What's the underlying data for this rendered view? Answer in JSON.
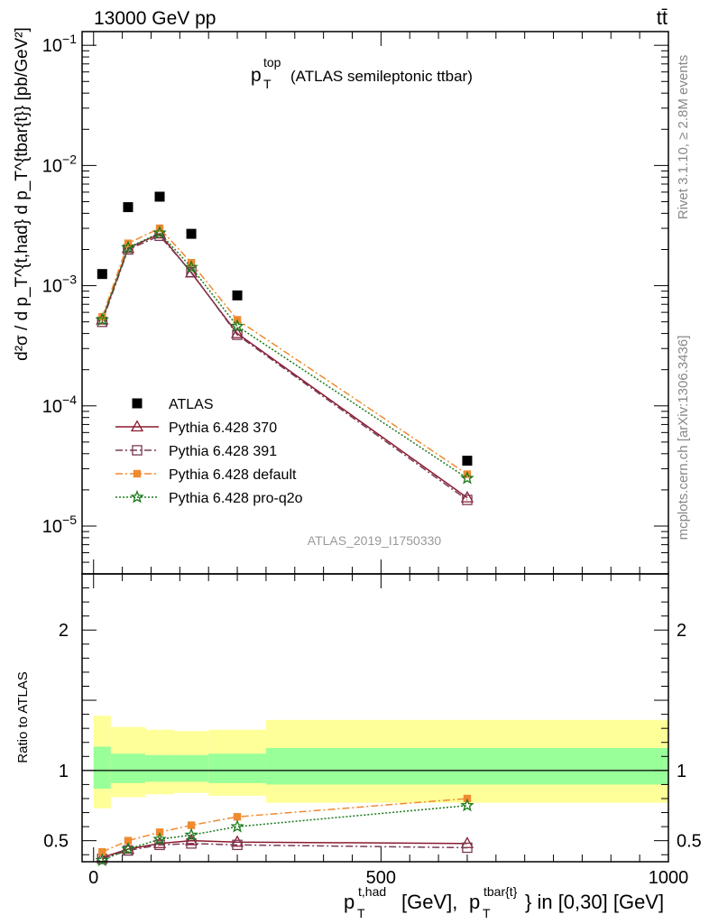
{
  "header": {
    "left": "13000 GeV pp",
    "right": "tt̄",
    "side_rivet": "Rivet 3.1.10, ≥ 2.8M events",
    "side_mcplots": "mcplots.cern.ch [arXiv:1306.3436]"
  },
  "chart_data": [
    {
      "type": "line",
      "panel": "main",
      "title": "p_T^top (ATLAS semileptonic ttbar)",
      "title_parts": {
        "p": "p",
        "sub": "T",
        "sup": "top",
        "rest": "(ATLAS semileptonic ttbar)"
      },
      "ylabel": "d²σ / d p_T^{t,had} d p_T^{tbar{t}} [pb/GeV²]",
      "ylog": true,
      "ylim": [
        4e-06,
        0.13
      ],
      "xlim": [
        -20,
        1000
      ],
      "y_tick_labels": [
        {
          "value": 0.1,
          "mant": "10",
          "exp": "−1"
        },
        {
          "value": 0.01,
          "mant": "10",
          "exp": "−2"
        },
        {
          "value": 0.001,
          "mant": "10",
          "exp": "−3"
        },
        {
          "value": 0.0001,
          "mant": "10",
          "exp": "−4"
        },
        {
          "value": 1e-05,
          "mant": "10",
          "exp": "−5"
        }
      ],
      "watermark": "ATLAS_2019_I1750330",
      "legend_position": "lower-left",
      "x": [
        15,
        60,
        115,
        170,
        250,
        650
      ],
      "series": [
        {
          "name": "ATLAS",
          "marker": "filled-square",
          "color": "#000000",
          "line": "none",
          "values": [
            0.00125,
            0.0045,
            0.0055,
            0.0027,
            0.00083,
            3.5e-05
          ]
        },
        {
          "name": "Pythia 6.428 370",
          "marker": "open-triangle",
          "color": "#8b1a2f",
          "line": "solid",
          "values": [
            0.00052,
            0.00205,
            0.0027,
            0.00128,
            0.0004,
            1.72e-05
          ]
        },
        {
          "name": "Pythia 6.428 391",
          "marker": "open-square",
          "color": "#7a3a55",
          "line": "dashdot",
          "values": [
            0.0005,
            0.002,
            0.0026,
            0.0013,
            0.00039,
            1.65e-05
          ]
        },
        {
          "name": "Pythia 6.428 default",
          "marker": "filled-square-small",
          "color": "#f08a30",
          "line": "dashdot",
          "values": [
            0.00055,
            0.00225,
            0.003,
            0.00155,
            0.00052,
            2.7e-05
          ]
        },
        {
          "name": "Pythia 6.428 pro-q2o",
          "marker": "star",
          "color": "#1a7a1a",
          "line": "dotted",
          "values": [
            0.00052,
            0.00207,
            0.00275,
            0.00142,
            0.00046,
            2.5e-05
          ]
        }
      ]
    },
    {
      "type": "line",
      "panel": "ratio",
      "ylabel": "Ratio to ATLAS",
      "ylim": [
        0.35,
        2.4
      ],
      "xlim": [
        -20,
        1000
      ],
      "reference_line": 1,
      "y_tick_labels": [
        {
          "value": 0.5,
          "text": "0.5"
        },
        {
          "value": 1,
          "text": "1"
        },
        {
          "value": 2,
          "text": "2"
        }
      ],
      "x_tick_labels": [
        {
          "value": 0,
          "text": "0"
        },
        {
          "value": 500,
          "text": "500"
        },
        {
          "value": 1000,
          "text": "1000"
        }
      ],
      "xlabel": "p_T^{t,had} [GeV], p_T^{tbar{t}} in [0,30] [GeV]",
      "xlabel_parts": {
        "a_sup": "t,had",
        "a_rest": "[GeV],",
        "b_sup": "tbar{t}",
        "b_rest": "} in [0,30] [GeV]",
        "p": "p",
        "sub": "T"
      },
      "bands": {
        "edges": [
          0,
          30,
          90,
          140,
          200,
          300,
          1000
        ],
        "outer_lo": [
          0.73,
          0.81,
          0.83,
          0.84,
          0.82,
          0.77
        ],
        "outer_hi": [
          1.39,
          1.31,
          1.29,
          1.28,
          1.29,
          1.36
        ],
        "inner_lo": [
          0.87,
          0.91,
          0.92,
          0.92,
          0.91,
          0.9
        ],
        "inner_hi": [
          1.17,
          1.12,
          1.11,
          1.11,
          1.12,
          1.16
        ],
        "outer_color": "#ffff99",
        "inner_color": "#99ff99"
      },
      "x": [
        15,
        60,
        115,
        170,
        250,
        650
      ],
      "series": [
        {
          "name": "Pythia 6.428 370",
          "marker": "open-triangle",
          "color": "#8b1a2f",
          "line": "solid",
          "values": [
            0.38,
            0.44,
            0.48,
            0.5,
            0.49,
            0.48
          ]
        },
        {
          "name": "Pythia 6.428 391",
          "marker": "open-square",
          "color": "#7a3a55",
          "line": "dashdot",
          "values": [
            0.37,
            0.43,
            0.47,
            0.48,
            0.47,
            0.45
          ]
        },
        {
          "name": "Pythia 6.428 default",
          "marker": "filled-square-small",
          "color": "#f08a30",
          "line": "dashdot",
          "values": [
            0.42,
            0.5,
            0.56,
            0.61,
            0.67,
            0.8
          ]
        },
        {
          "name": "Pythia 6.428 pro-q2o",
          "marker": "star",
          "color": "#1a7a1a",
          "line": "dotted",
          "values": [
            0.36,
            0.44,
            0.51,
            0.54,
            0.6,
            0.75
          ]
        }
      ]
    }
  ]
}
